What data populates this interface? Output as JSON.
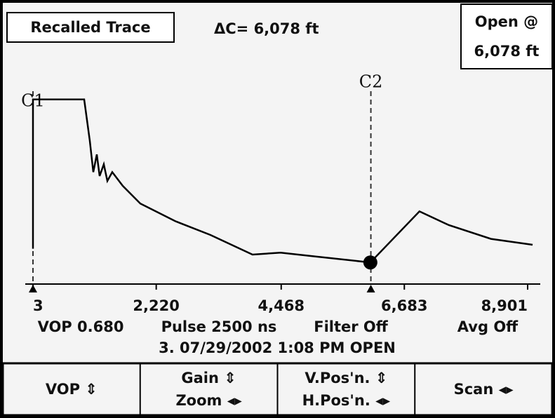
{
  "header": {
    "mode": "Recalled Trace",
    "delta": "ΔC= 6,078 ft",
    "status_line1": "Open @",
    "status_line2": "6,078 ft"
  },
  "chart_data": {
    "type": "line",
    "x": [
      3,
      3,
      924,
      1025,
      1088,
      1151,
      1202,
      1277,
      1341,
      1429,
      1618,
      1934,
      2564,
      3195,
      3952,
      4457,
      5088,
      6072,
      6955,
      7485,
      8242,
      8990
    ],
    "values": [
      18,
      94,
      94,
      73,
      57,
      66,
      55,
      61,
      52.5,
      57,
      50,
      41,
      32,
      25,
      15,
      16,
      14,
      11,
      37,
      30,
      23,
      20
    ],
    "color": "#000000",
    "xlim": [
      3,
      8901
    ],
    "ylim": [
      0,
      100
    ],
    "xticks": [
      3,
      {
        "value": 2220,
        "label": "2,220"
      },
      {
        "value": 4468,
        "label": "4,468"
      },
      {
        "value": 6683,
        "label": "6,683"
      },
      {
        "value": 8901,
        "label": "8,901"
      }
    ],
    "cursors": [
      {
        "label": "C1",
        "x": 3
      },
      {
        "label": "C2",
        "x": 6081
      }
    ]
  },
  "info": {
    "vop": "VOP 0.680",
    "pulse": "Pulse 2500 ns",
    "filter": "Filter Off",
    "avg": "Avg Off",
    "record": "3. 07/29/2002 1:08 PM OPEN"
  },
  "buttons": [
    {
      "line1": "VOP ⇕"
    },
    {
      "line1": "Gain ⇕",
      "line2": "Zoom ◂▸"
    },
    {
      "line1": "V.Pos'n. ⇕",
      "line2": "H.Pos'n. ◂▸"
    },
    {
      "line1": "Scan ◂▸"
    }
  ]
}
